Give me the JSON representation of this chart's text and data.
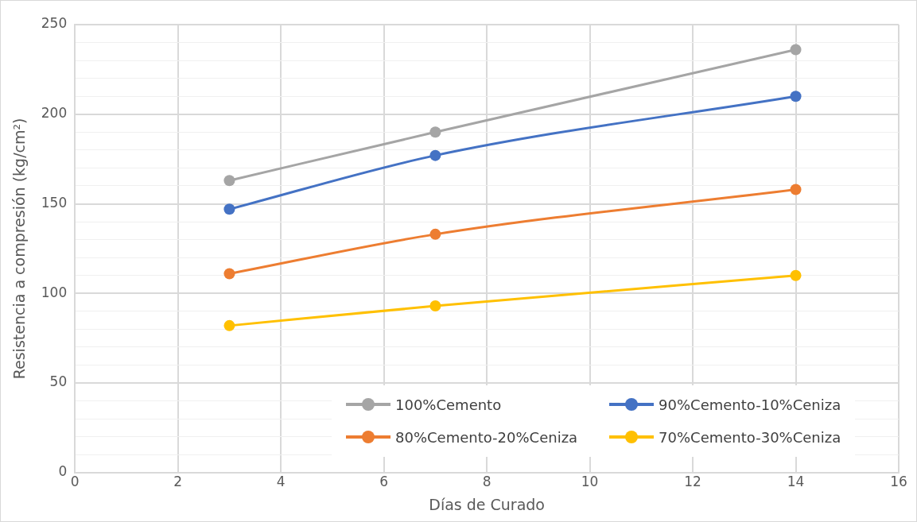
{
  "chart_data": {
    "type": "line",
    "xlabel": "Días de Curado",
    "ylabel": "Resistencia a compresión (kg/cm²)",
    "x": [
      3,
      7,
      14
    ],
    "series": [
      {
        "name": "100%Cemento",
        "color": "#a5a5a5",
        "values": [
          163,
          190,
          236
        ]
      },
      {
        "name": "90%Cemento-10%Ceniza",
        "color": "#4472c4",
        "values": [
          147,
          177,
          210
        ]
      },
      {
        "name": "80%Cemento-20%Ceniza",
        "color": "#ed7d31",
        "values": [
          111,
          133,
          158
        ]
      },
      {
        "name": "70%Cemento-30%Ceniza",
        "color": "#ffc000",
        "values": [
          82,
          93,
          110
        ]
      }
    ],
    "xlim": [
      0,
      16
    ],
    "xticks": [
      0,
      2,
      4,
      6,
      8,
      10,
      12,
      14,
      16
    ],
    "ylim": [
      0,
      250
    ],
    "yticks": [
      0,
      {
        "value": 10,
        "label": null
      },
      {
        "value": 20,
        "label": null
      },
      {
        "value": 30,
        "label": null
      },
      {
        "value": 40,
        "label": null
      },
      50,
      {
        "value": 60,
        "label": null
      },
      {
        "value": 70,
        "label": null
      },
      {
        "value": 80,
        "label": null
      },
      {
        "value": 90,
        "label": null
      },
      100,
      {
        "value": 110,
        "label": null
      },
      {
        "value": 120,
        "label": null
      },
      {
        "value": 130,
        "label": null
      },
      {
        "value": 140,
        "label": null
      },
      150,
      {
        "value": 160,
        "label": null
      },
      {
        "value": 170,
        "label": null
      },
      {
        "value": 180,
        "label": null
      },
      {
        "value": 190,
        "label": null
      },
      200,
      {
        "value": 210,
        "label": null
      },
      {
        "value": 220,
        "label": null
      },
      {
        "value": 230,
        "label": null
      },
      {
        "value": 240,
        "label": null
      },
      250
    ],
    "grid": true,
    "legend": "bottom right",
    "marker": "circle",
    "line_style": "solid"
  }
}
